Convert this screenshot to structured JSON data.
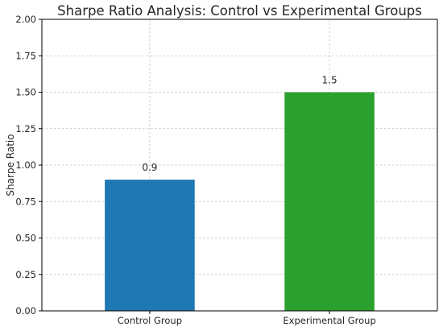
{
  "chart_data": {
    "type": "bar",
    "title": "Sharpe Ratio Analysis: Control vs Experimental Groups",
    "xlabel": "",
    "ylabel": "Sharpe Ratio",
    "categories": [
      "Control Group",
      "Experimental Group"
    ],
    "values": [
      0.9,
      1.5
    ],
    "value_labels": [
      "0.9",
      "1.5"
    ],
    "colors": [
      "#1f77b4",
      "#2ca02c"
    ],
    "ylim": [
      0,
      2.0
    ],
    "yticks": [
      0.0,
      0.25,
      0.5,
      0.75,
      1.0,
      1.25,
      1.5,
      1.75,
      2.0
    ],
    "ytick_labels": [
      "0.00",
      "0.25",
      "0.50",
      "0.75",
      "1.00",
      "1.25",
      "1.50",
      "1.75",
      "2.00"
    ],
    "grid": true,
    "legend": "none"
  }
}
